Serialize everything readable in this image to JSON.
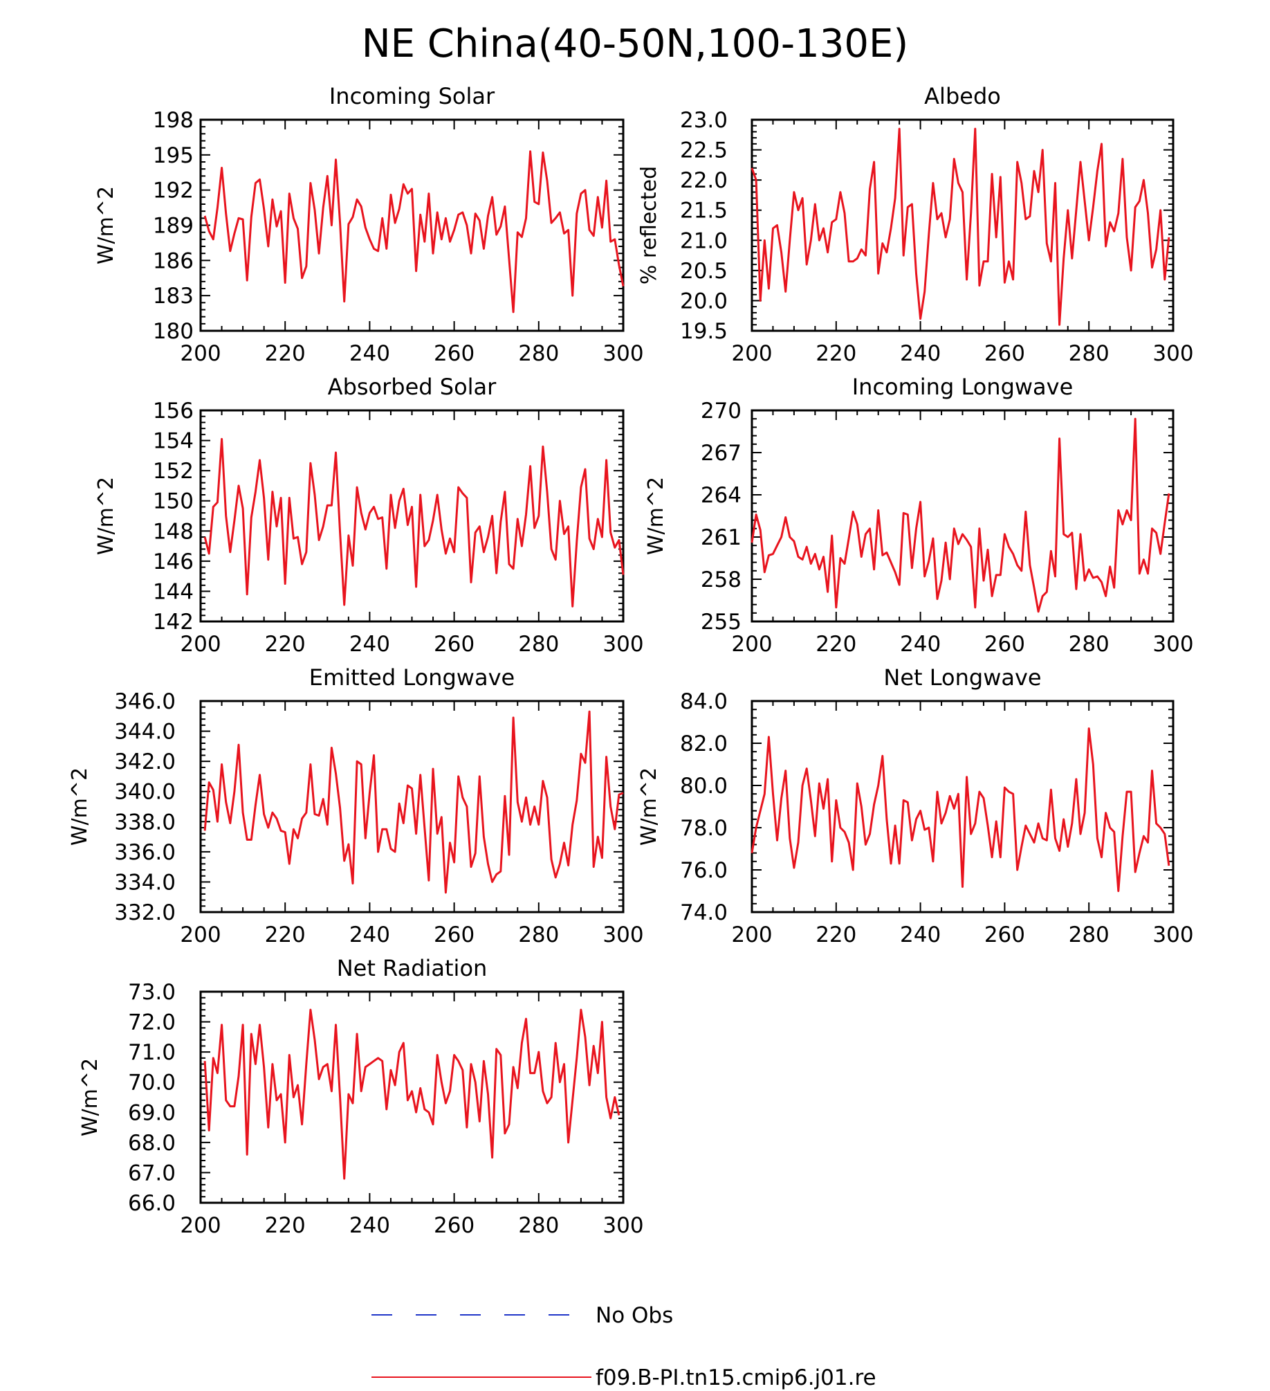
{
  "figure": {
    "title": "NE China(40-50N,100-130E)",
    "legend": [
      {
        "label": "No Obs",
        "color": "#1f35c8",
        "style": "dashed"
      },
      {
        "label": "f09.B-PI.tn15.cmip6.j01.re",
        "color": "#e8141e",
        "style": "solid"
      }
    ]
  },
  "chart_data": [
    {
      "type": "line",
      "title": "Incoming Solar",
      "ylabel": "W/m^2",
      "xlabel": "",
      "xlim": [
        200,
        300
      ],
      "ylim": [
        180,
        198
      ],
      "xticks": [
        "200",
        "220",
        "240",
        "260",
        "280",
        "300"
      ],
      "yticks": [
        "180",
        "183",
        "186",
        "189",
        "192",
        "195",
        "198"
      ],
      "series": [
        {
          "color": "#e8141e",
          "x_start": 201,
          "values": [
            189.8,
            188.5,
            187.8,
            190.5,
            193.9,
            190.0,
            186.8,
            188.3,
            189.6,
            189.5,
            184.3,
            189.7,
            192.6,
            192.9,
            190.4,
            187.2,
            191.2,
            188.9,
            190.2,
            184.1,
            191.7,
            189.6,
            188.7,
            184.5,
            185.5,
            192.6,
            190.3,
            186.6,
            190.5,
            193.2,
            189.0,
            194.6,
            189.2,
            182.5,
            189.1,
            189.7,
            191.2,
            190.6,
            188.8,
            187.8,
            187.0,
            186.8,
            189.6,
            187.0,
            191.6,
            189.2,
            190.4,
            192.5,
            191.7,
            192.1,
            185.1,
            189.9,
            187.6,
            191.7,
            186.6,
            190.1,
            187.8,
            189.6,
            187.6,
            188.6,
            189.9,
            190.1,
            189.0,
            186.6,
            190.0,
            189.4,
            187.0,
            189.8,
            191.4,
            188.2,
            188.9,
            190.6,
            186.1,
            181.6,
            188.4,
            188.0,
            189.6,
            195.3,
            191.0,
            190.8,
            195.2,
            192.8,
            189.2,
            189.6,
            190.1,
            188.3,
            188.6,
            183.0,
            190.0,
            191.7,
            192.0,
            188.6,
            188.1,
            191.4,
            188.8,
            192.8,
            187.6,
            187.8,
            185.6,
            183.8
          ]
        }
      ]
    },
    {
      "type": "line",
      "title": "Albedo",
      "ylabel": "% reflected",
      "xlabel": "",
      "xlim": [
        200,
        300
      ],
      "ylim": [
        19.5,
        23.0
      ],
      "xticks": [
        "200",
        "220",
        "240",
        "260",
        "280",
        "300"
      ],
      "yticks": [
        "19.5",
        "20.0",
        "20.5",
        "21.0",
        "21.5",
        "22.0",
        "22.5",
        "23.0"
      ],
      "series": [
        {
          "color": "#e8141e",
          "x_start": 200,
          "values": [
            22.2,
            22.0,
            20.0,
            21.0,
            20.2,
            21.2,
            21.25,
            20.8,
            20.15,
            21.0,
            21.8,
            21.5,
            21.7,
            20.6,
            21.0,
            21.6,
            21.0,
            21.2,
            20.8,
            21.3,
            21.35,
            21.8,
            21.45,
            20.65,
            20.65,
            20.7,
            20.85,
            20.75,
            21.85,
            22.3,
            20.45,
            20.95,
            20.8,
            21.2,
            21.7,
            22.85,
            20.75,
            21.55,
            21.6,
            20.45,
            19.7,
            20.15,
            21.1,
            21.95,
            21.35,
            21.45,
            21.05,
            21.35,
            22.35,
            21.95,
            21.8,
            20.35,
            21.45,
            22.85,
            20.25,
            20.65,
            20.65,
            22.1,
            21.05,
            22.05,
            20.3,
            20.65,
            20.35,
            22.3,
            21.95,
            21.35,
            21.4,
            22.15,
            21.8,
            22.5,
            20.95,
            20.65,
            21.95,
            19.6,
            20.7,
            21.5,
            20.7,
            21.5,
            22.3,
            21.65,
            21.0,
            21.55,
            22.15,
            22.6,
            20.9,
            21.3,
            21.15,
            21.45,
            22.35,
            21.05,
            20.5,
            21.55,
            21.65,
            22.0,
            21.45,
            20.55,
            20.85,
            21.5,
            20.35,
            21.05
          ]
        }
      ]
    },
    {
      "type": "line",
      "title": "Absorbed Solar",
      "ylabel": "W/m^2",
      "xlabel": "",
      "xlim": [
        200,
        300
      ],
      "ylim": [
        142,
        156
      ],
      "xticks": [
        "200",
        "220",
        "240",
        "260",
        "280",
        "300"
      ],
      "yticks": [
        "142",
        "144",
        "146",
        "148",
        "150",
        "152",
        "154",
        "156"
      ],
      "series": [
        {
          "color": "#e8141e",
          "x_start": 201,
          "values": [
            147.6,
            146.5,
            149.6,
            149.9,
            154.1,
            149.0,
            146.6,
            148.7,
            151.0,
            149.5,
            143.8,
            148.9,
            150.6,
            152.7,
            150.2,
            146.1,
            150.6,
            148.3,
            150.2,
            144.5,
            150.2,
            147.5,
            147.6,
            145.8,
            146.6,
            152.5,
            150.4,
            147.4,
            148.3,
            149.7,
            149.7,
            153.2,
            147.9,
            143.1,
            147.7,
            145.7,
            150.9,
            149.2,
            148.1,
            149.2,
            149.6,
            148.8,
            148.9,
            145.5,
            150.4,
            148.2,
            150.0,
            150.8,
            148.4,
            149.6,
            144.3,
            150.4,
            147.0,
            147.4,
            148.7,
            150.4,
            148.1,
            146.5,
            147.5,
            146.6,
            150.9,
            150.5,
            150.2,
            144.6,
            147.9,
            148.3,
            146.6,
            147.6,
            149.0,
            145.2,
            148.6,
            150.6,
            145.8,
            145.5,
            148.8,
            147.0,
            149.1,
            152.3,
            148.2,
            149.0,
            153.6,
            150.6,
            146.8,
            146.1,
            150.0,
            147.8,
            148.3,
            143.0,
            147.3,
            150.9,
            152.1,
            147.5,
            146.8,
            148.8,
            147.6,
            152.7,
            147.9,
            146.9,
            147.4,
            145.1
          ]
        }
      ]
    },
    {
      "type": "line",
      "title": "Incoming Longwave",
      "ylabel": "W/m^2",
      "xlabel": "",
      "xlim": [
        200,
        300
      ],
      "ylim": [
        255,
        270
      ],
      "xticks": [
        "200",
        "220",
        "240",
        "260",
        "280",
        "300"
      ],
      "yticks": [
        "255",
        "258",
        "261",
        "264",
        "267",
        "270"
      ],
      "series": [
        {
          "color": "#e8141e",
          "x_start": 200,
          "values": [
            260.6,
            262.6,
            261.5,
            258.5,
            259.7,
            259.8,
            260.4,
            261.0,
            262.4,
            261.0,
            260.7,
            259.6,
            259.4,
            260.3,
            259.1,
            259.8,
            258.7,
            259.6,
            257.1,
            261.1,
            256.0,
            259.5,
            259.1,
            260.9,
            262.8,
            261.9,
            259.6,
            261.2,
            261.6,
            258.7,
            262.9,
            259.7,
            259.9,
            259.2,
            258.5,
            257.6,
            262.7,
            262.6,
            258.8,
            261.6,
            263.5,
            258.2,
            259.3,
            260.9,
            256.6,
            257.9,
            260.6,
            258.0,
            261.6,
            260.5,
            261.2,
            260.8,
            260.3,
            256.0,
            261.6,
            257.9,
            260.1,
            256.8,
            258.3,
            258.3,
            261.2,
            260.3,
            259.8,
            259.0,
            258.6,
            262.8,
            259.0,
            257.4,
            255.7,
            256.8,
            257.1,
            260.0,
            258.2,
            268.0,
            261.2,
            261.0,
            261.3,
            257.3,
            261.2,
            257.9,
            258.7,
            258.1,
            258.2,
            257.8,
            256.8,
            258.9,
            257.4,
            262.9,
            261.9,
            262.9,
            262.2,
            269.4,
            258.4,
            259.4,
            258.4,
            261.6,
            261.3,
            259.8,
            262.0,
            264.1
          ]
        }
      ]
    },
    {
      "type": "line",
      "title": "Emitted Longwave",
      "ylabel": "W/m^2",
      "xlabel": "",
      "xlim": [
        200,
        300
      ],
      "ylim": [
        332.0,
        346.0
      ],
      "xticks": [
        "200",
        "220",
        "240",
        "260",
        "280",
        "300"
      ],
      "yticks": [
        "332.0",
        "334.0",
        "336.0",
        "338.0",
        "340.0",
        "342.0",
        "344.0",
        "346.0"
      ],
      "series": [
        {
          "color": "#e8141e",
          "x_start": 201,
          "values": [
            337.4,
            340.6,
            340.1,
            338.0,
            341.8,
            339.3,
            337.9,
            340.0,
            343.1,
            338.6,
            336.8,
            336.8,
            339.1,
            341.1,
            338.5,
            337.6,
            338.6,
            338.2,
            337.4,
            337.3,
            335.2,
            337.5,
            336.9,
            338.2,
            338.6,
            341.8,
            338.5,
            338.4,
            339.5,
            337.8,
            342.9,
            341.2,
            338.9,
            335.4,
            336.5,
            333.9,
            342.0,
            341.8,
            336.9,
            339.9,
            342.4,
            336.0,
            337.5,
            337.5,
            336.2,
            336.0,
            339.2,
            337.9,
            340.4,
            340.2,
            337.2,
            341.1,
            337.6,
            334.1,
            341.5,
            337.2,
            338.3,
            333.3,
            336.6,
            335.3,
            341.0,
            339.6,
            339.0,
            335.0,
            335.9,
            341.0,
            337.0,
            335.2,
            334.0,
            334.5,
            334.7,
            339.7,
            335.8,
            344.9,
            339.3,
            338.0,
            339.6,
            337.8,
            339.0,
            337.8,
            340.7,
            339.6,
            335.5,
            334.3,
            335.2,
            336.6,
            335.1,
            337.8,
            339.4,
            342.5,
            341.9,
            345.3,
            335.0,
            337.0,
            335.6,
            342.3,
            339.0,
            337.5,
            339.8,
            339.9
          ]
        }
      ]
    },
    {
      "type": "line",
      "title": "Net Longwave",
      "ylabel": "W/m^2",
      "xlabel": "",
      "xlim": [
        200,
        300
      ],
      "ylim": [
        74.0,
        84.0
      ],
      "xticks": [
        "200",
        "220",
        "240",
        "260",
        "280",
        "300"
      ],
      "yticks": [
        "74.0",
        "76.0",
        "78.0",
        "80.0",
        "82.0",
        "84.0"
      ],
      "series": [
        {
          "color": "#e8141e",
          "x_start": 200,
          "values": [
            76.8,
            78.0,
            78.8,
            79.6,
            82.3,
            79.6,
            77.4,
            79.4,
            80.7,
            77.5,
            76.1,
            77.3,
            80.0,
            80.8,
            79.3,
            77.6,
            80.1,
            78.9,
            80.3,
            76.4,
            79.3,
            78.0,
            77.8,
            77.3,
            76.0,
            80.1,
            79.0,
            77.2,
            77.7,
            79.1,
            80.0,
            81.4,
            78.4,
            76.3,
            78.1,
            76.3,
            79.3,
            79.2,
            77.4,
            78.4,
            78.8,
            77.9,
            78.0,
            76.4,
            79.7,
            78.2,
            78.7,
            79.5,
            78.9,
            79.6,
            75.2,
            80.4,
            77.7,
            78.2,
            79.7,
            79.4,
            78.1,
            76.6,
            78.3,
            76.6,
            79.9,
            79.7,
            79.6,
            76.0,
            77.1,
            78.1,
            77.7,
            77.3,
            78.2,
            77.5,
            77.4,
            79.8,
            77.5,
            76.9,
            78.4,
            77.1,
            78.2,
            80.3,
            77.7,
            78.7,
            82.7,
            81.0,
            77.5,
            76.6,
            78.7,
            78.0,
            77.8,
            75.0,
            77.6,
            79.7,
            79.7,
            75.9,
            76.8,
            77.6,
            77.3,
            80.7,
            78.2,
            78.0,
            77.7,
            76.2
          ]
        }
      ]
    },
    {
      "type": "line",
      "title": "Net Radiation",
      "ylabel": "W/m^2",
      "xlabel": "",
      "xlim": [
        200,
        300
      ],
      "ylim": [
        66.0,
        73.0
      ],
      "xticks": [
        "200",
        "220",
        "240",
        "260",
        "280",
        "300"
      ],
      "yticks": [
        "66.0",
        "67.0",
        "68.0",
        "69.0",
        "70.0",
        "71.0",
        "72.0",
        "73.0"
      ],
      "series": [
        {
          "color": "#e8141e",
          "x_start": 201,
          "values": [
            70.7,
            68.4,
            70.8,
            70.3,
            71.9,
            69.4,
            69.2,
            69.2,
            70.2,
            71.9,
            67.6,
            71.6,
            70.6,
            71.9,
            70.5,
            68.5,
            70.6,
            69.4,
            69.6,
            68.0,
            70.9,
            69.5,
            69.9,
            68.6,
            70.6,
            72.4,
            71.4,
            70.1,
            70.5,
            70.6,
            69.7,
            71.9,
            69.5,
            66.8,
            69.6,
            69.3,
            71.6,
            69.7,
            70.5,
            70.6,
            70.7,
            70.8,
            70.7,
            69.1,
            70.4,
            69.9,
            71.0,
            71.3,
            69.4,
            69.7,
            69.0,
            69.8,
            69.1,
            69.0,
            68.6,
            70.9,
            70.0,
            69.3,
            69.7,
            70.9,
            70.7,
            70.4,
            68.5,
            70.6,
            70.0,
            68.7,
            70.7,
            69.6,
            67.5,
            71.1,
            70.9,
            68.3,
            68.6,
            70.5,
            69.8,
            71.3,
            72.1,
            70.3,
            70.3,
            71.0,
            69.7,
            69.3,
            69.5,
            71.3,
            70.0,
            70.6,
            68.0,
            69.4,
            70.8,
            72.4,
            71.5,
            69.9,
            71.2,
            70.3,
            72.0,
            69.5,
            68.8,
            69.5,
            68.9
          ]
        }
      ]
    }
  ]
}
